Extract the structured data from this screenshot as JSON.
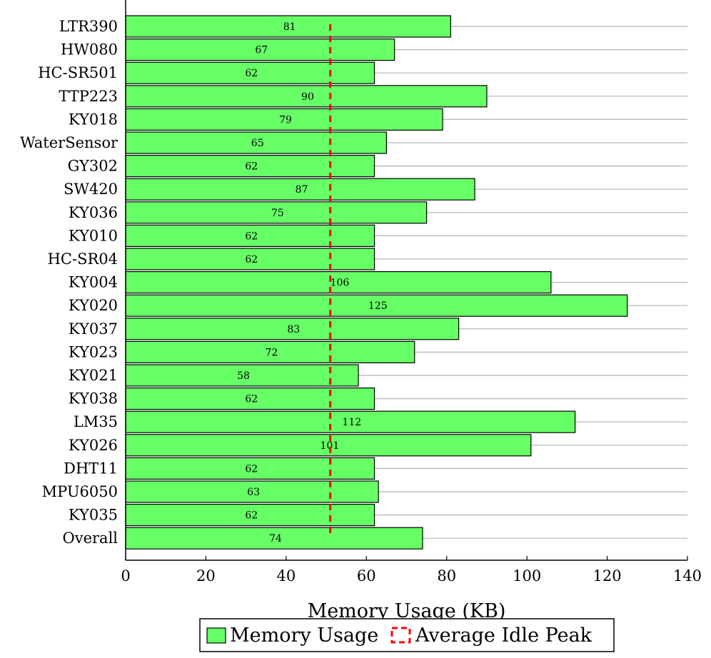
{
  "chart_data": {
    "type": "bar",
    "orientation": "horizontal",
    "categories": [
      "LTR390",
      "HW080",
      "HC-SR501",
      "TTP223",
      "KY018",
      "WaterSensor",
      "GY302",
      "SW420",
      "KY036",
      "KY010",
      "HC-SR04",
      "KY004",
      "KY020",
      "KY037",
      "KY023",
      "KY021",
      "KY038",
      "LM35",
      "KY026",
      "DHT11",
      "MPU6050",
      "KY035",
      "Overall"
    ],
    "values": [
      81,
      67,
      62,
      90,
      79,
      65,
      62,
      87,
      75,
      62,
      62,
      106,
      125,
      83,
      72,
      58,
      62,
      112,
      101,
      62,
      63,
      62,
      74
    ],
    "average_idle_peak": 51,
    "xlabel": "Memory Usage (KB)",
    "xlim": [
      0,
      140
    ],
    "xticks": [
      0,
      20,
      40,
      60,
      80,
      100,
      120,
      140
    ],
    "grid": true,
    "legend": {
      "position": "bottom-center",
      "entries": [
        {
          "name": "Memory Usage",
          "style": "bar",
          "color": "#66ff66"
        },
        {
          "name": "Average Idle Peak",
          "style": "dashed-line",
          "color": "#ff0000"
        }
      ]
    },
    "colors": {
      "bar_fill": "#66ff66",
      "bar_stroke": "#000000",
      "avg_line": "#ff0000",
      "grid": "#b3b3b3"
    }
  }
}
